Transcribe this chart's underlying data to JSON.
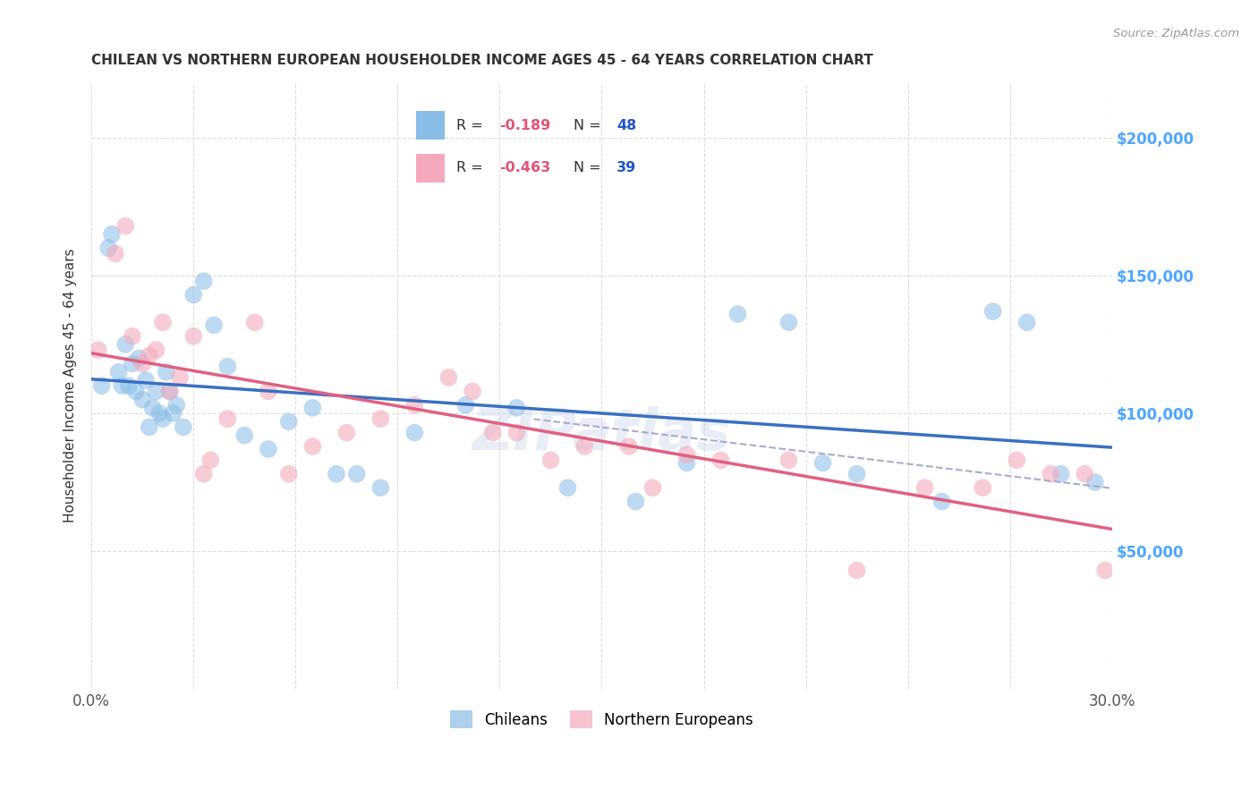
{
  "title": "CHILEAN VS NORTHERN EUROPEAN HOUSEHOLDER INCOME AGES 45 - 64 YEARS CORRELATION CHART",
  "source": "Source: ZipAtlas.com",
  "ylabel": "Householder Income Ages 45 - 64 years",
  "xlim": [
    0.0,
    0.3
  ],
  "ylim": [
    0,
    220000
  ],
  "yticks": [
    50000,
    100000,
    150000,
    200000
  ],
  "ytick_labels": [
    "$50,000",
    "$100,000",
    "$150,000",
    "$200,000"
  ],
  "ytick_color": "#4da6ff",
  "watermark": "ZIPatlas",
  "blue_color": "#89bde8",
  "pink_color": "#f4aabc",
  "blue_line_color": "#3a70c0",
  "pink_line_color": "#e06080",
  "dashed_line_color": "#aaaacc",
  "legend_R_color": "#e05575",
  "legend_N_color": "#2255cc",
  "legend_text_color": "#333333",
  "chileans_x": [
    0.003,
    0.005,
    0.006,
    0.008,
    0.009,
    0.01,
    0.011,
    0.012,
    0.013,
    0.014,
    0.015,
    0.016,
    0.017,
    0.018,
    0.019,
    0.02,
    0.021,
    0.022,
    0.023,
    0.024,
    0.025,
    0.027,
    0.03,
    0.033,
    0.036,
    0.04,
    0.045,
    0.052,
    0.058,
    0.065,
    0.072,
    0.078,
    0.085,
    0.095,
    0.11,
    0.125,
    0.14,
    0.16,
    0.175,
    0.19,
    0.205,
    0.215,
    0.225,
    0.25,
    0.265,
    0.275,
    0.285,
    0.295
  ],
  "chileans_y": [
    110000,
    160000,
    165000,
    115000,
    110000,
    125000,
    110000,
    118000,
    108000,
    120000,
    105000,
    112000,
    95000,
    102000,
    108000,
    100000,
    98000,
    115000,
    108000,
    100000,
    103000,
    95000,
    143000,
    148000,
    132000,
    117000,
    92000,
    87000,
    97000,
    102000,
    78000,
    78000,
    73000,
    93000,
    103000,
    102000,
    73000,
    68000,
    82000,
    136000,
    133000,
    82000,
    78000,
    68000,
    137000,
    133000,
    78000,
    75000
  ],
  "ne_x": [
    0.002,
    0.007,
    0.01,
    0.012,
    0.015,
    0.017,
    0.019,
    0.021,
    0.023,
    0.026,
    0.03,
    0.033,
    0.035,
    0.04,
    0.048,
    0.052,
    0.058,
    0.065,
    0.075,
    0.085,
    0.095,
    0.105,
    0.112,
    0.118,
    0.125,
    0.135,
    0.145,
    0.158,
    0.165,
    0.175,
    0.185,
    0.205,
    0.225,
    0.245,
    0.262,
    0.272,
    0.282,
    0.292,
    0.298
  ],
  "ne_y": [
    123000,
    158000,
    168000,
    128000,
    118000,
    121000,
    123000,
    133000,
    108000,
    113000,
    128000,
    78000,
    83000,
    98000,
    133000,
    108000,
    78000,
    88000,
    93000,
    98000,
    103000,
    113000,
    108000,
    93000,
    93000,
    83000,
    88000,
    88000,
    73000,
    85000,
    83000,
    83000,
    43000,
    73000,
    73000,
    83000,
    78000,
    78000,
    43000
  ]
}
